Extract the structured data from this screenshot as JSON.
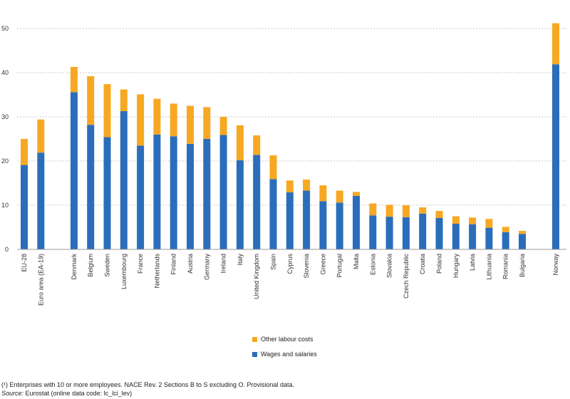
{
  "chart_data": {
    "type": "bar",
    "stacked": true,
    "categories": [
      "EU-28",
      "Euro area (EA-19)",
      "Denmark",
      "Belgium",
      "Sweden",
      "Luxembourg",
      "France",
      "Netherlands",
      "Finland",
      "Austria",
      "Germany",
      "Ireland",
      "Italy",
      "United Kingdom",
      "Spain",
      "Cyprus",
      "Slovenia",
      "Greece",
      "Portugal",
      "Malta",
      "Estonia",
      "Slovakia",
      "Czech Republic",
      "Croatia",
      "Poland",
      "Hungary",
      "Latvia",
      "Lithuania",
      "Romania",
      "Bulgaria",
      "Norway"
    ],
    "gap_after_indices": [
      1,
      29
    ],
    "series": [
      {
        "name": "Wages and salaries",
        "color": "#2a6ebb",
        "values": [
          19.1,
          21.9,
          35.6,
          28.2,
          25.4,
          31.3,
          23.5,
          26.0,
          25.6,
          23.9,
          25.0,
          25.9,
          20.2,
          21.4,
          15.9,
          12.9,
          13.3,
          10.9,
          10.6,
          12.1,
          7.7,
          7.4,
          7.3,
          8.1,
          7.1,
          5.8,
          5.7,
          4.9,
          3.9,
          3.5,
          41.9
        ]
      },
      {
        "name": "Other labour costs",
        "color": "#f7a823",
        "values": [
          5.9,
          7.5,
          5.7,
          11.0,
          12.0,
          4.9,
          11.6,
          8.1,
          7.4,
          8.6,
          7.2,
          4.1,
          7.9,
          4.4,
          5.4,
          2.7,
          2.5,
          3.6,
          2.7,
          0.9,
          2.7,
          2.7,
          2.7,
          1.4,
          1.6,
          1.7,
          1.5,
          2.0,
          1.2,
          0.7,
          9.3
        ]
      }
    ],
    "ylim": [
      0,
      50
    ],
    "yticks": [
      0,
      10,
      20,
      30,
      40,
      50
    ],
    "grid": true,
    "legend_placement": "bottom-center"
  },
  "legend": {
    "other_label": "Other labour costs",
    "wages_label": "Wages and salaries",
    "other_color": "#f7a823",
    "wages_color": "#2a6ebb"
  },
  "footnotes": {
    "note": "(¹) Enterprises with 10 or more employees. NACE Rev. 2 Sections B to S excluding O. Provisional data.",
    "source_label": "Source:",
    "source_text": " Eurostat (online data code: lc_lci_lev)"
  }
}
